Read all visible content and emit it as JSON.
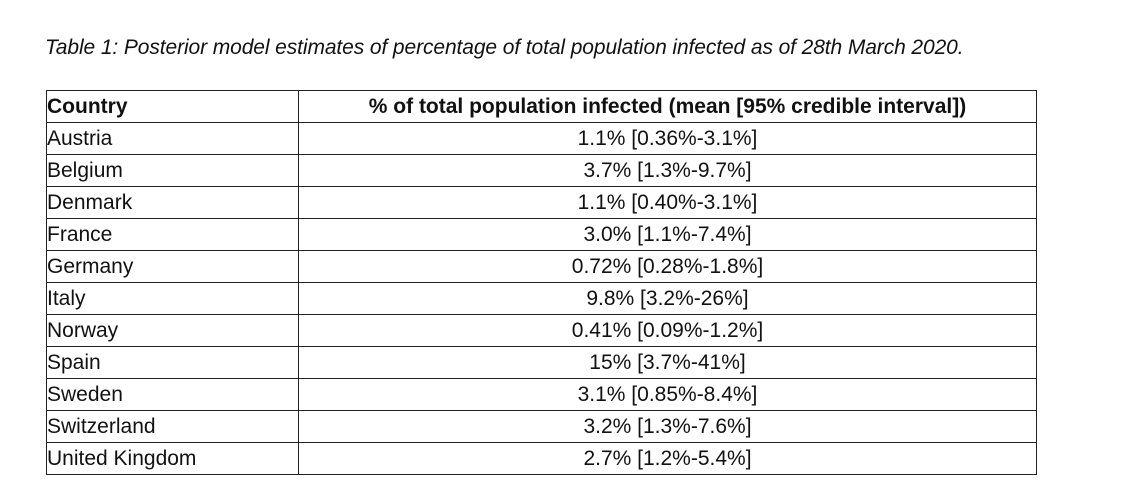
{
  "caption": "Table 1: Posterior model estimates of percentage of total population infected as of 28th March 2020.",
  "table": {
    "headers": {
      "country": "Country",
      "value": "% of total population infected (mean [95% credible interval])"
    },
    "rows": [
      {
        "country": "Austria",
        "value": "1.1% [0.36%-3.1%]"
      },
      {
        "country": "Belgium",
        "value": "3.7% [1.3%-9.7%]"
      },
      {
        "country": "Denmark",
        "value": "1.1% [0.40%-3.1%]"
      },
      {
        "country": "France",
        "value": "3.0% [1.1%-7.4%]"
      },
      {
        "country": "Germany",
        "value": "0.72% [0.28%-1.8%]"
      },
      {
        "country": "Italy",
        "value": "9.8% [3.2%-26%]"
      },
      {
        "country": "Norway",
        "value": "0.41% [0.09%-1.2%]"
      },
      {
        "country": "Spain",
        "value": "15% [3.7%-41%]"
      },
      {
        "country": "Sweden",
        "value": "3.1% [0.85%-8.4%]"
      },
      {
        "country": "Switzerland",
        "value": "3.2% [1.3%-7.6%]"
      },
      {
        "country": "United Kingdom",
        "value": "2.7% [1.2%-5.4%]"
      }
    ]
  }
}
